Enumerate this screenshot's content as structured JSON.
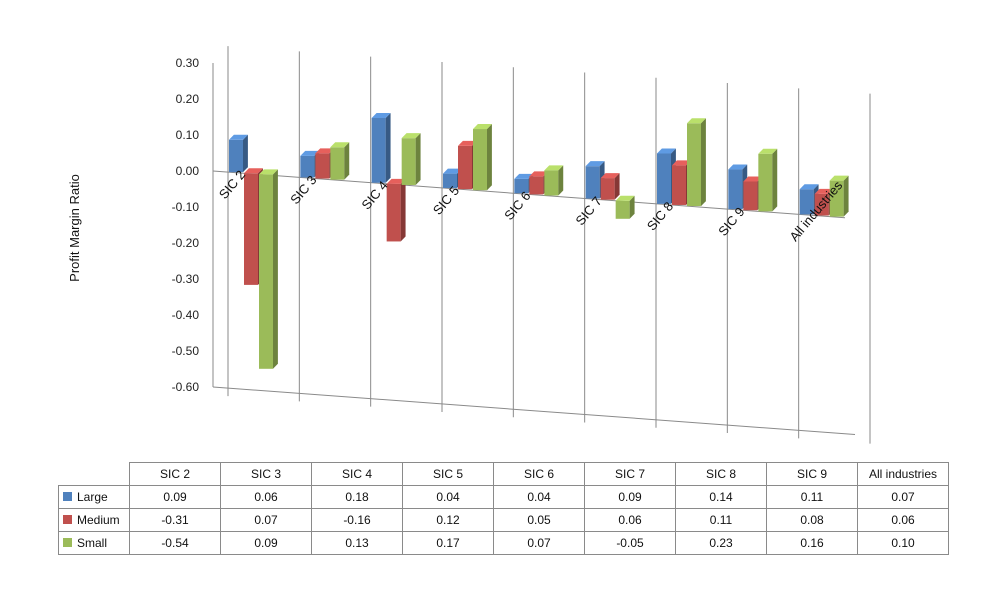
{
  "chart_data": {
    "type": "bar",
    "title": "",
    "xlabel": "",
    "ylabel": "Profit Margin Ratio",
    "ylim": [
      -0.6,
      0.3
    ],
    "y_ticks": [
      "0.30",
      "0.20",
      "0.10",
      "0.00",
      "-0.10",
      "-0.20",
      "-0.30",
      "-0.40",
      "-0.50",
      "-0.60"
    ],
    "y_tick_values": [
      0.3,
      0.2,
      0.1,
      0.0,
      -0.1,
      -0.2,
      -0.3,
      -0.4,
      -0.5,
      -0.6
    ],
    "categories": [
      "SIC 2",
      "SIC 3",
      "SIC 4",
      "SIC 5",
      "SIC 6",
      "SIC 7",
      "SIC 8",
      "SIC 9",
      "All industries"
    ],
    "series": [
      {
        "name": "Large",
        "color": "#4f81bd",
        "values": [
          0.09,
          0.06,
          0.18,
          0.04,
          0.04,
          0.09,
          0.14,
          0.11,
          0.07
        ],
        "labels": [
          "0.09",
          "0.06",
          "0.18",
          "0.04",
          "0.04",
          "0.09",
          "0.14",
          "0.11",
          "0.07"
        ]
      },
      {
        "name": "Medium",
        "color": "#c0504d",
        "values": [
          -0.31,
          0.07,
          -0.16,
          0.12,
          0.05,
          0.06,
          0.11,
          0.08,
          0.06
        ],
        "labels": [
          "-0.31",
          "0.07",
          "-0.16",
          "0.12",
          "0.05",
          "0.06",
          "0.11",
          "0.08",
          "0.06"
        ]
      },
      {
        "name": "Small",
        "color": "#9bbb59",
        "values": [
          -0.54,
          0.09,
          0.13,
          0.17,
          0.07,
          -0.05,
          0.23,
          0.16,
          0.1
        ],
        "labels": [
          "-0.54",
          "0.09",
          "0.13",
          "0.17",
          "0.07",
          "-0.05",
          "0.23",
          "0.16",
          "0.10"
        ]
      }
    ],
    "grid": true,
    "legend": "data-table-bottom"
  }
}
